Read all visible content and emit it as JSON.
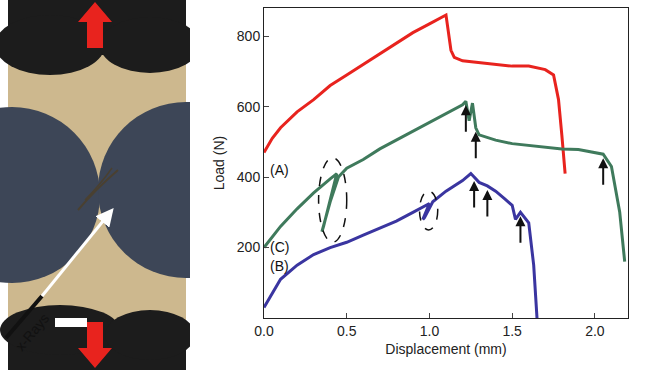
{
  "chart_data": {
    "type": "line",
    "x_label": "Displacement (mm)",
    "y_label": "Load (N)",
    "xlim": [
      0,
      2.2
    ],
    "ylim": [
      0,
      880
    ],
    "xticks": [
      {
        "value": 0,
        "label": "0.0"
      },
      {
        "value": 0.5,
        "label": "0.5"
      },
      {
        "value": 1,
        "label": "1.0"
      },
      {
        "value": 1.5,
        "label": "1.5"
      },
      {
        "value": 2,
        "label": "2.0"
      }
    ],
    "yticks": [
      200,
      400,
      600,
      800
    ],
    "annotations": [
      "x-Rays"
    ],
    "series": [
      {
        "name": "(A)",
        "color": "#e8231e",
        "x": [
          0,
          0.05,
          0.1,
          0.2,
          0.3,
          0.4,
          0.5,
          0.6,
          0.7,
          0.8,
          0.9,
          1.0,
          1.08,
          1.1,
          1.13,
          1.15,
          1.2,
          1.3,
          1.4,
          1.5,
          1.6,
          1.7,
          1.75,
          1.78,
          1.8,
          1.82
        ],
        "values": [
          470,
          510,
          540,
          585,
          620,
          660,
          690,
          720,
          750,
          780,
          810,
          835,
          855,
          860,
          760,
          740,
          730,
          725,
          720,
          715,
          715,
          705,
          690,
          620,
          520,
          410
        ]
      },
      {
        "name": "(B)",
        "color": "#3f7a5c",
        "x": [
          0,
          0.1,
          0.2,
          0.3,
          0.4,
          0.44,
          0.36,
          0.35,
          0.4,
          0.45,
          0.5,
          0.6,
          0.7,
          0.8,
          0.9,
          1.0,
          1.1,
          1.2,
          1.22,
          1.24,
          1.26,
          1.28,
          1.3,
          1.4,
          1.5,
          1.6,
          1.7,
          1.8,
          1.9,
          2.0,
          2.05,
          2.1,
          2.15,
          2.18
        ],
        "values": [
          200,
          260,
          310,
          355,
          395,
          410,
          260,
          245,
          330,
          400,
          425,
          450,
          480,
          505,
          530,
          555,
          580,
          605,
          615,
          560,
          610,
          540,
          520,
          505,
          495,
          490,
          485,
          480,
          478,
          470,
          465,
          430,
          300,
          160
        ],
        "events": [
          1.22,
          1.28,
          2.05
        ],
        "circled": [
          0.33,
          0.5
        ]
      },
      {
        "name": "(C)",
        "color": "#3a35a0",
        "x": [
          0,
          0.1,
          0.2,
          0.3,
          0.4,
          0.5,
          0.6,
          0.7,
          0.8,
          0.9,
          1.0,
          0.96,
          0.97,
          1.02,
          1.1,
          1.2,
          1.25,
          1.27,
          1.3,
          1.35,
          1.4,
          1.45,
          1.5,
          1.52,
          1.55,
          1.6,
          1.63,
          1.65
        ],
        "values": [
          30,
          110,
          150,
          180,
          200,
          215,
          235,
          255,
          275,
          300,
          325,
          280,
          285,
          330,
          360,
          390,
          410,
          400,
          385,
          375,
          360,
          340,
          320,
          280,
          300,
          270,
          150,
          0
        ],
        "events": [
          1.27,
          1.35,
          1.55
        ],
        "circled": [
          0.94,
          1.05
        ]
      }
    ]
  }
}
